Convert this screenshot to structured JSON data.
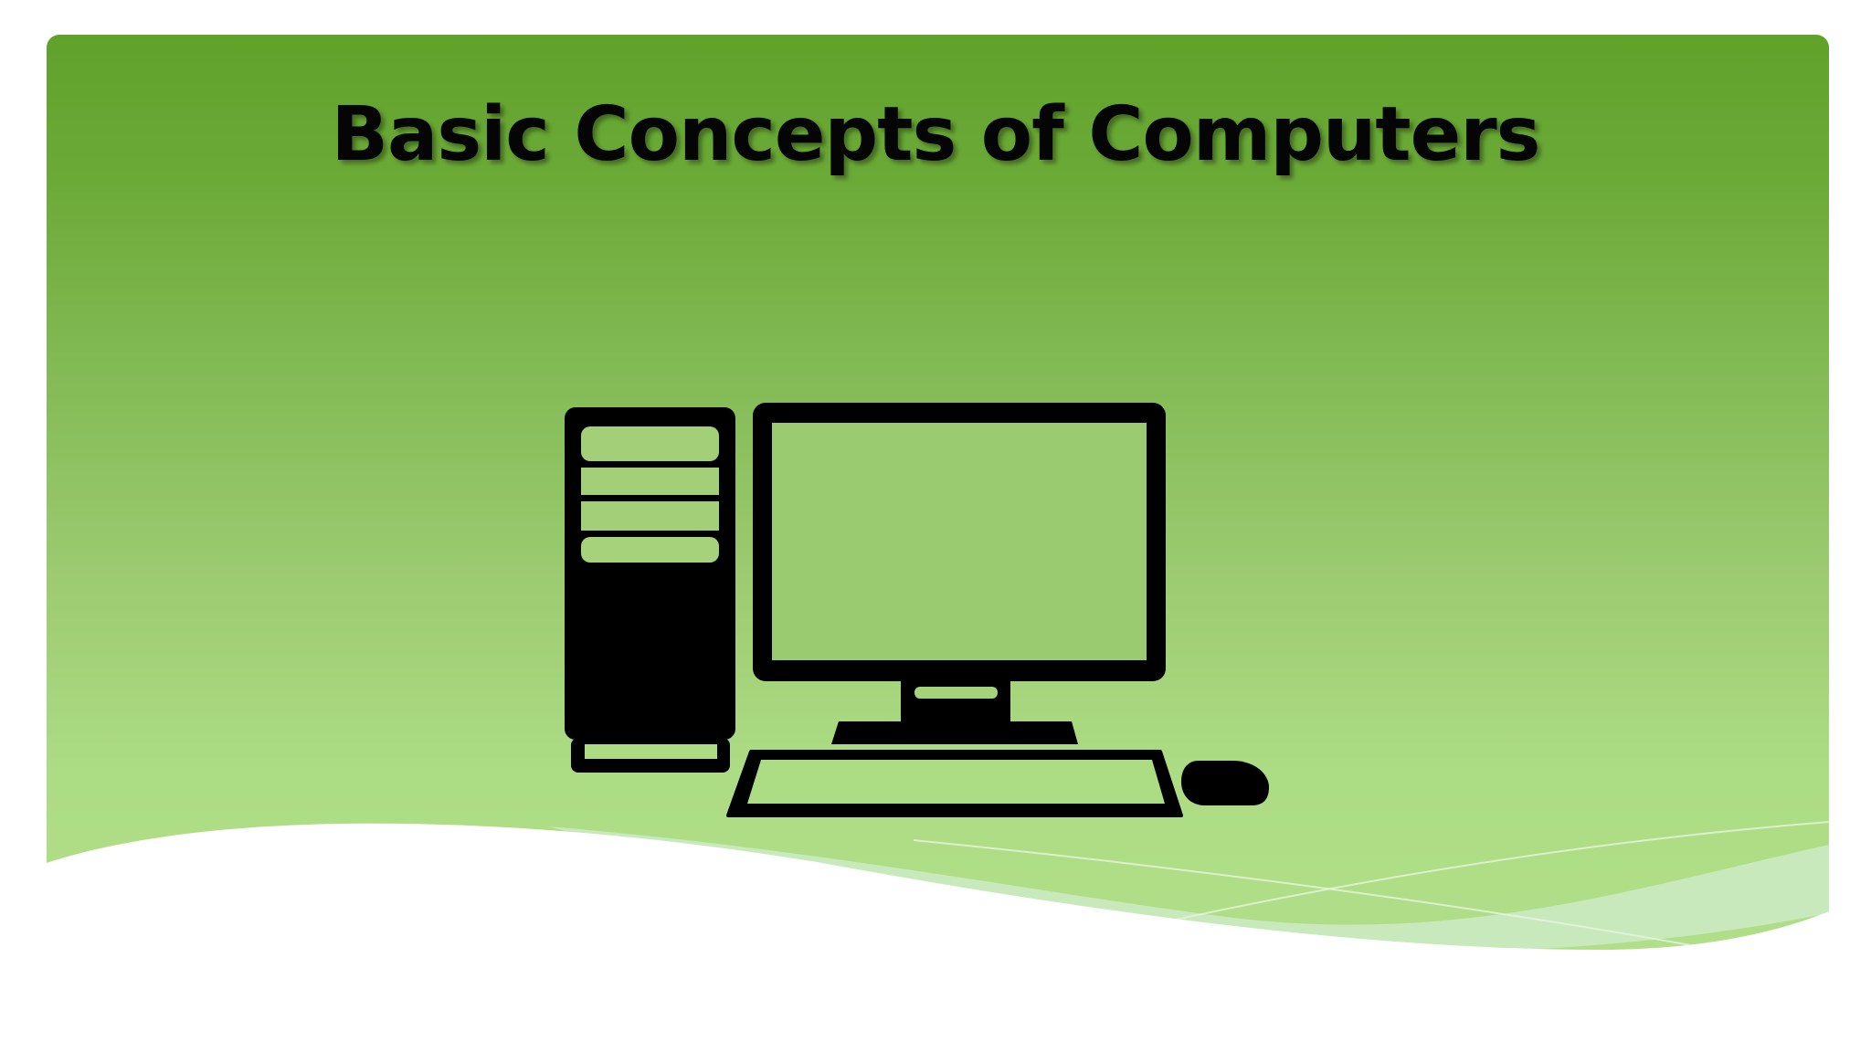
{
  "slide": {
    "title": "Basic Concepts of Computers",
    "icon": "desktop-computer-icon"
  },
  "colors": {
    "background_top": "#5fa22a",
    "background_bottom": "#b3e08b",
    "icon": "#000000",
    "title_text": "#050505"
  }
}
